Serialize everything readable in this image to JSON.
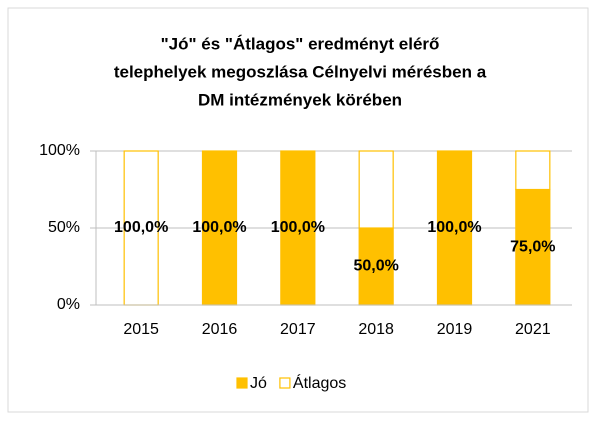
{
  "chart_data": {
    "type": "stacked_bar",
    "title": [
      "\"Jó\" és \"Átlagos\" eredményt elérő",
      "telephelyek megoszlása Célnyelvi mérésben a",
      "DM intézmények körében"
    ],
    "categories": [
      "2015",
      "2016",
      "2017",
      "2018",
      "2019",
      "2021"
    ],
    "series": [
      {
        "name": "Jó",
        "color": "#ffc000",
        "values": [
          0,
          100,
          100,
          50,
          100,
          75
        ],
        "value_labels": [
          null,
          "100,0%",
          "100,0%",
          "50,0%",
          "100,0%",
          "75,0%"
        ]
      },
      {
        "name": "Átlagos",
        "color": "#ffffff",
        "values": [
          100,
          0,
          0,
          50,
          0,
          25
        ],
        "value_labels": [
          "100,0%",
          null,
          null,
          null,
          null,
          null
        ]
      }
    ],
    "ylim": [
      0,
      100
    ],
    "yticks": [
      {
        "value": 0,
        "label": "0%"
      },
      {
        "value": 50,
        "label": "50%"
      },
      {
        "value": 100,
        "label": "100%"
      }
    ],
    "grid": true,
    "legend": "bottom",
    "outline_color": "#ffc000"
  }
}
